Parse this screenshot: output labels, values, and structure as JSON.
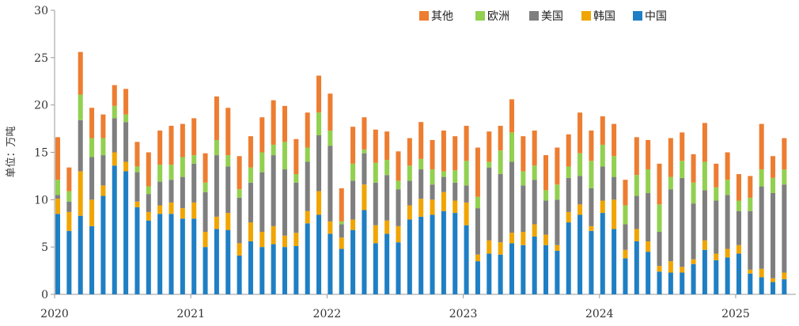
{
  "chart_data": {
    "type": "bar",
    "stacked": true,
    "ylabel": "单位：万吨",
    "ylim": [
      0,
      30
    ],
    "yticks": [
      0,
      5,
      10,
      15,
      20,
      25,
      30
    ],
    "xtick_labels": [
      "2020",
      "2021",
      "2022",
      "2023",
      "2024",
      "2025"
    ],
    "legend_position": "top-right",
    "start_month": "2020-01",
    "series": [
      {
        "name": "中国",
        "color": "#1f7fc4",
        "values": [
          8.5,
          6.7,
          8.3,
          7.2,
          10.4,
          13.6,
          13.0,
          9.2,
          7.8,
          8.5,
          8.5,
          8.0,
          8.0,
          5.0,
          6.9,
          6.8,
          4.1,
          5.6,
          5.0,
          5.3,
          5.0,
          5.1,
          7.5,
          8.4,
          6.4,
          4.8,
          6.8,
          8.9,
          5.4,
          6.4,
          5.5,
          7.9,
          8.2,
          8.4,
          8.8,
          8.6,
          7.3,
          3.5,
          4.3,
          4.2,
          5.4,
          5.2,
          6.1,
          5.2,
          4.6,
          7.6,
          8.4,
          6.7,
          8.6,
          6.9,
          3.8,
          5.6,
          4.5,
          2.4,
          2.3,
          2.3,
          3.2,
          4.7,
          3.6,
          3.9,
          4.3,
          2.2,
          1.8,
          1.3,
          1.6
        ]
      },
      {
        "name": "韩国",
        "color": "#f0a500",
        "values": [
          1.6,
          2.0,
          4.7,
          2.8,
          1.1,
          1.4,
          1.0,
          0.6,
          0.9,
          0.9,
          1.2,
          1.1,
          1.7,
          1.6,
          1.3,
          1.8,
          1.3,
          2.0,
          1.6,
          1.9,
          1.2,
          1.4,
          1.3,
          2.5,
          1.3,
          1.2,
          1.1,
          2.7,
          1.9,
          1.4,
          1.7,
          1.5,
          1.9,
          1.6,
          2.0,
          1.3,
          2.4,
          0.7,
          1.4,
          1.3,
          1.1,
          1.4,
          1.3,
          1.1,
          0.6,
          1.1,
          1.1,
          0.5,
          1.3,
          3.1,
          0.9,
          1.3,
          1.1,
          0.6,
          1.2,
          0.6,
          0.5,
          1.0,
          0.7,
          0.9,
          0.9,
          0.4,
          0.9,
          0.4,
          0.7
        ]
      },
      {
        "name": "美国",
        "color": "#7f7f7f",
        "values": [
          0.4,
          1.1,
          5.4,
          4.5,
          3.2,
          3.6,
          4.2,
          3.1,
          1.9,
          2.5,
          2.4,
          3.3,
          4.1,
          4.2,
          6.5,
          4.9,
          4.8,
          4.2,
          6.3,
          7.5,
          7.0,
          5.3,
          5.2,
          5.9,
          8.0,
          1.4,
          4.1,
          3.3,
          4.5,
          4.8,
          3.9,
          2.6,
          3.1,
          1.6,
          1.6,
          1.9,
          1.8,
          4.9,
          7.7,
          7.2,
          7.5,
          4.9,
          4.7,
          3.6,
          4.8,
          3.6,
          3.0,
          4.0,
          3.6,
          2.4,
          2.7,
          3.5,
          5.1,
          3.6,
          7.6,
          9.4,
          5.9,
          5.3,
          5.6,
          5.7,
          3.6,
          6.2,
          8.7,
          9.0,
          9.3
        ]
      },
      {
        "name": "欧洲",
        "color": "#92d050",
        "values": [
          1.6,
          1.1,
          2.7,
          2.0,
          1.8,
          1.3,
          0.8,
          0.6,
          0.8,
          1.8,
          1.6,
          2.1,
          0.9,
          1.0,
          1.6,
          1.2,
          0.9,
          1.6,
          2.1,
          1.1,
          2.9,
          0.9,
          1.5,
          2.4,
          1.6,
          0.3,
          1.8,
          0.4,
          2.1,
          1.6,
          0.9,
          1.6,
          1.1,
          1.6,
          0.6,
          1.3,
          2.6,
          1.2,
          0.6,
          2.5,
          3.1,
          1.5,
          1.5,
          1.1,
          1.6,
          1.2,
          2.4,
          2.9,
          2.3,
          2.2,
          2.0,
          2.2,
          2.5,
          2.9,
          1.3,
          1.8,
          2.2,
          3.0,
          1.4,
          1.6,
          1.1,
          1.4,
          1.8,
          1.6,
          1.6
        ]
      },
      {
        "name": "其他",
        "color": "#ed7d31",
        "values": [
          4.5,
          2.5,
          4.5,
          3.2,
          2.5,
          2.2,
          2.7,
          2.6,
          3.6,
          3.6,
          4.1,
          3.5,
          3.9,
          3.1,
          4.6,
          5.0,
          3.5,
          3.3,
          3.7,
          4.7,
          3.8,
          3.7,
          3.7,
          3.9,
          3.9,
          3.5,
          3.9,
          3.4,
          3.5,
          3.0,
          3.1,
          2.9,
          3.9,
          3.1,
          4.3,
          3.6,
          3.7,
          5.2,
          3.2,
          2.6,
          3.5,
          3.7,
          3.7,
          3.7,
          3.9,
          3.4,
          4.3,
          3.2,
          3.0,
          3.4,
          2.7,
          4.0,
          3.1,
          4.3,
          4.1,
          3.0,
          3.0,
          4.1,
          2.5,
          2.9,
          2.8,
          2.3,
          4.8,
          2.3,
          3.3
        ]
      }
    ]
  }
}
